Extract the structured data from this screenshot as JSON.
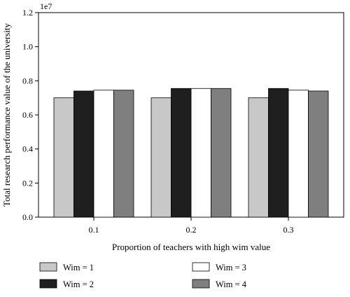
{
  "chart_data": {
    "type": "bar",
    "title": "",
    "xlabel": "Proportion of teachers with high wim value",
    "ylabel": "Total research performance value of the university",
    "y_multiplier_label": "1e7",
    "categories": [
      "0.1",
      "0.2",
      "0.3"
    ],
    "ylim": [
      0,
      1.2
    ],
    "yticks": [
      "0.0",
      "0.2",
      "0.4",
      "0.6",
      "0.8",
      "1.0",
      "1.2"
    ],
    "grid": false,
    "legend_position": "bottom",
    "series": [
      {
        "name": "Wim = 1",
        "color": "#c8c8c8",
        "values": [
          0.7,
          0.7,
          0.7
        ]
      },
      {
        "name": "Wim = 2",
        "color": "#1f1f1f",
        "values": [
          0.74,
          0.755,
          0.755
        ]
      },
      {
        "name": "Wim = 3",
        "color": "#ffffff",
        "values": [
          0.745,
          0.755,
          0.745
        ]
      },
      {
        "name": "Wim = 4",
        "color": "#7f7f7f",
        "values": [
          0.745,
          0.755,
          0.74
        ]
      }
    ]
  }
}
